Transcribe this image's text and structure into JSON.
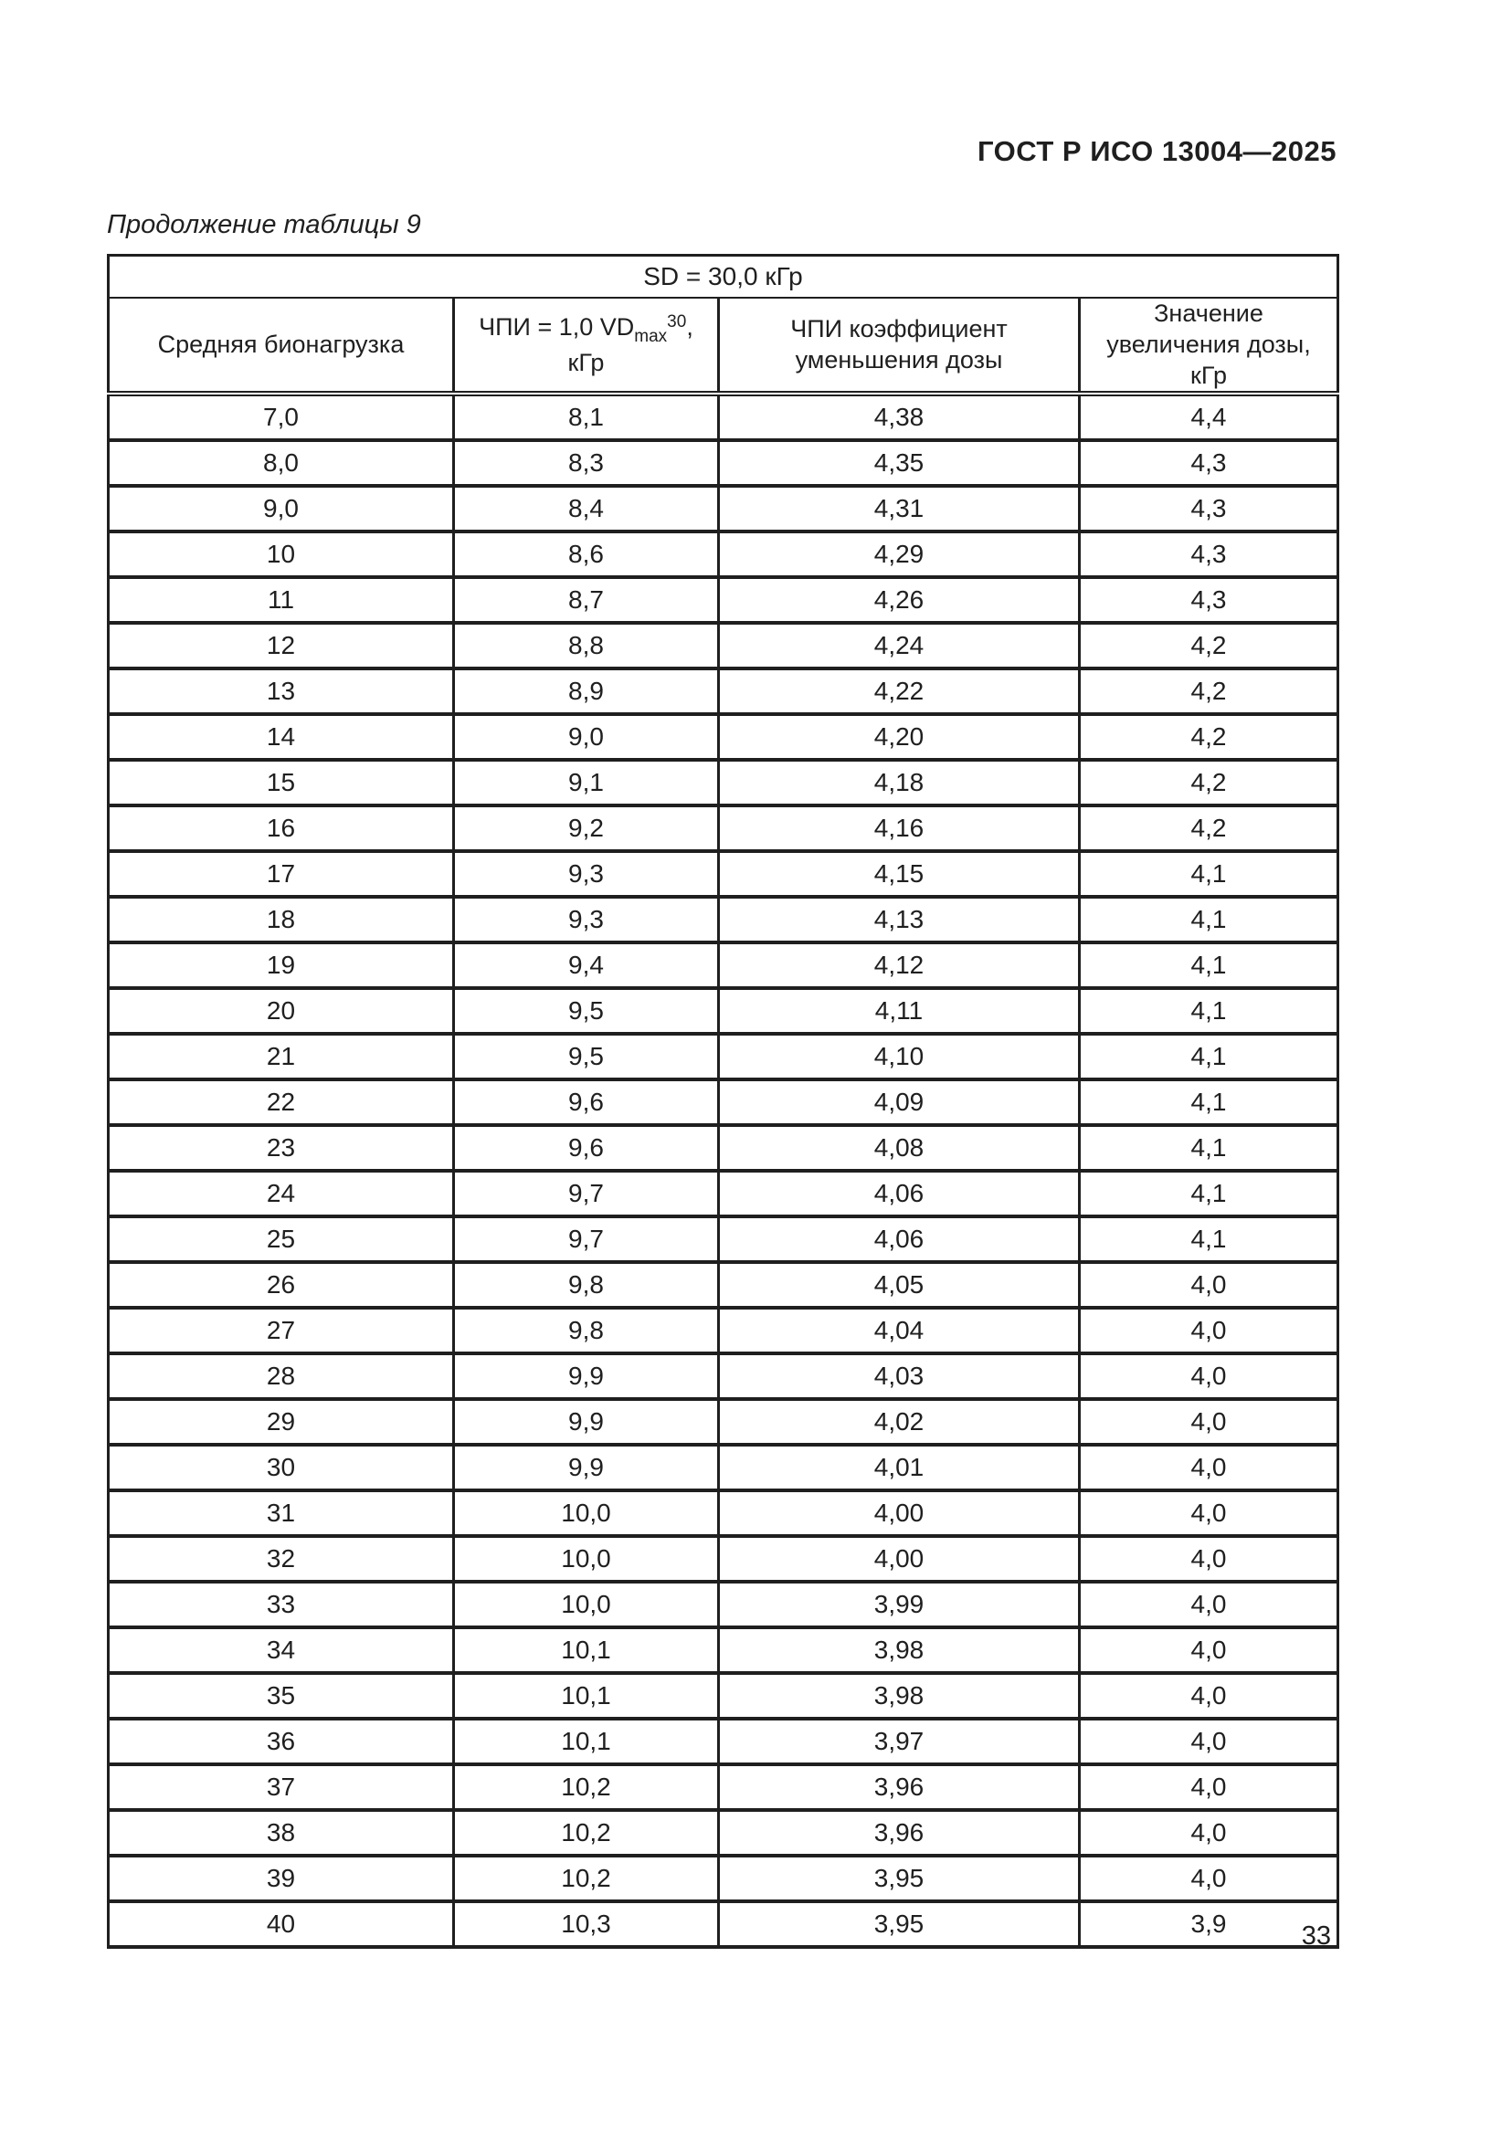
{
  "page": {
    "header": "ГОСТ Р ИСО 13004—2025",
    "table_caption": "Продолжение таблицы 9",
    "page_number": "33"
  },
  "table": {
    "span_header": "SD = 30,0 кГр",
    "headers": {
      "bioburden": "Средняя бионагрузка",
      "vdmax": {
        "prefix": "ЧПИ = 1,0 VD",
        "sub": "max",
        "sup": "30",
        "suffix": ", кГр"
      },
      "reduction": "ЧПИ коэффициент уменьшения дозы",
      "increase": "Значение увеличения дозы, кГр"
    },
    "rows": [
      [
        "7,0",
        "8,1",
        "4,38",
        "4,4"
      ],
      [
        "8,0",
        "8,3",
        "4,35",
        "4,3"
      ],
      [
        "9,0",
        "8,4",
        "4,31",
        "4,3"
      ],
      [
        "10",
        "8,6",
        "4,29",
        "4,3"
      ],
      [
        "11",
        "8,7",
        "4,26",
        "4,3"
      ],
      [
        "12",
        "8,8",
        "4,24",
        "4,2"
      ],
      [
        "13",
        "8,9",
        "4,22",
        "4,2"
      ],
      [
        "14",
        "9,0",
        "4,20",
        "4,2"
      ],
      [
        "15",
        "9,1",
        "4,18",
        "4,2"
      ],
      [
        "16",
        "9,2",
        "4,16",
        "4,2"
      ],
      [
        "17",
        "9,3",
        "4,15",
        "4,1"
      ],
      [
        "18",
        "9,3",
        "4,13",
        "4,1"
      ],
      [
        "19",
        "9,4",
        "4,12",
        "4,1"
      ],
      [
        "20",
        "9,5",
        "4,11",
        "4,1"
      ],
      [
        "21",
        "9,5",
        "4,10",
        "4,1"
      ],
      [
        "22",
        "9,6",
        "4,09",
        "4,1"
      ],
      [
        "23",
        "9,6",
        "4,08",
        "4,1"
      ],
      [
        "24",
        "9,7",
        "4,06",
        "4,1"
      ],
      [
        "25",
        "9,7",
        "4,06",
        "4,1"
      ],
      [
        "26",
        "9,8",
        "4,05",
        "4,0"
      ],
      [
        "27",
        "9,8",
        "4,04",
        "4,0"
      ],
      [
        "28",
        "9,9",
        "4,03",
        "4,0"
      ],
      [
        "29",
        "9,9",
        "4,02",
        "4,0"
      ],
      [
        "30",
        "9,9",
        "4,01",
        "4,0"
      ],
      [
        "31",
        "10,0",
        "4,00",
        "4,0"
      ],
      [
        "32",
        "10,0",
        "4,00",
        "4,0"
      ],
      [
        "33",
        "10,0",
        "3,99",
        "4,0"
      ],
      [
        "34",
        "10,1",
        "3,98",
        "4,0"
      ],
      [
        "35",
        "10,1",
        "3,98",
        "4,0"
      ],
      [
        "36",
        "10,1",
        "3,97",
        "4,0"
      ],
      [
        "37",
        "10,2",
        "3,96",
        "4,0"
      ],
      [
        "38",
        "10,2",
        "3,96",
        "4,0"
      ],
      [
        "39",
        "10,2",
        "3,95",
        "4,0"
      ],
      [
        "40",
        "10,3",
        "3,95",
        "3,9"
      ]
    ]
  }
}
